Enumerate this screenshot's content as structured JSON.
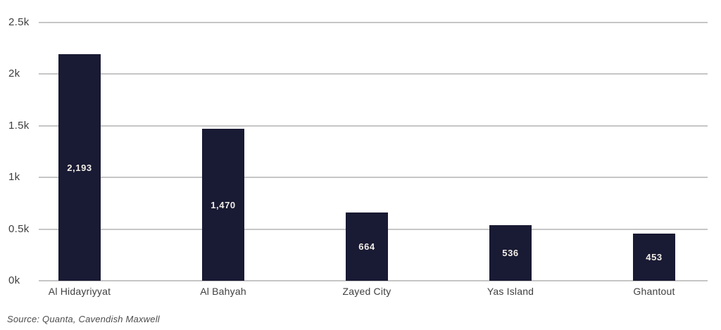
{
  "chart_data": {
    "type": "bar",
    "title": "",
    "categories": [
      "Al Hidayriyyat",
      "Al Bahyah",
      "Zayed City",
      "Yas Island",
      "Ghantout"
    ],
    "values": [
      2193,
      1470,
      664,
      536,
      453
    ],
    "value_labels": [
      "2,193",
      "1,470",
      "664",
      "536",
      "453"
    ],
    "xlabel": "",
    "ylabel": "",
    "ylim": [
      0,
      2500
    ],
    "y_ticks": [
      {
        "label": "2.5k",
        "value": 2500
      },
      {
        "label": "2k",
        "value": 2000
      },
      {
        "label": "1.5k",
        "value": 1500
      },
      {
        "label": "1k",
        "value": 1000
      },
      {
        "label": "0.5k",
        "value": 500
      },
      {
        "label": "0k",
        "value": 0
      }
    ],
    "grid": "horizontal",
    "legend": "none"
  },
  "colors": {
    "bar": "#191a33",
    "gridline": "#c6c6c6",
    "tick_label": "#3f3f3f",
    "bar_value_label": "#f2eee8",
    "source_text": "#4c4c4c",
    "background": "#ffffff"
  },
  "footer": {
    "source": "Source: Quanta, Cavendish Maxwell"
  }
}
